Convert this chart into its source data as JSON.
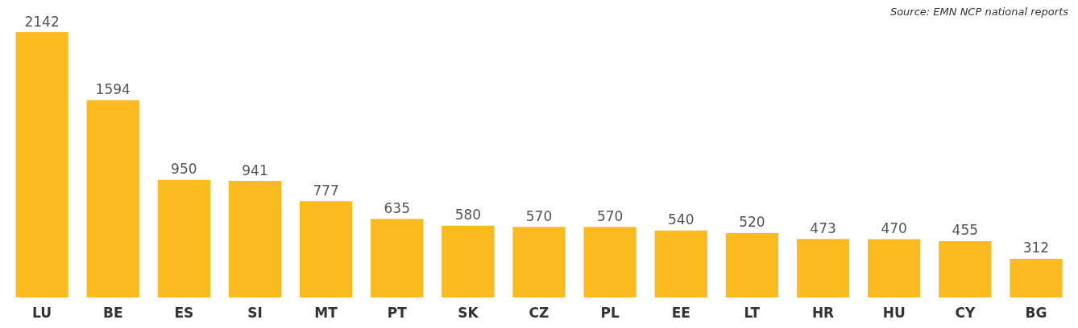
{
  "chart_data": {
    "type": "bar",
    "categories": [
      "LU",
      "BE",
      "ES",
      "SI",
      "MT",
      "PT",
      "SK",
      "CZ",
      "PL",
      "EE",
      "LT",
      "HR",
      "HU",
      "CY",
      "BG"
    ],
    "values": [
      2142,
      1594,
      950,
      941,
      777,
      635,
      580,
      570,
      570,
      540,
      520,
      473,
      470,
      455,
      312
    ],
    "color": "#fbbb1f",
    "data_labels": true,
    "annotations": [
      "Source: EMN NCP national reports"
    ]
  }
}
